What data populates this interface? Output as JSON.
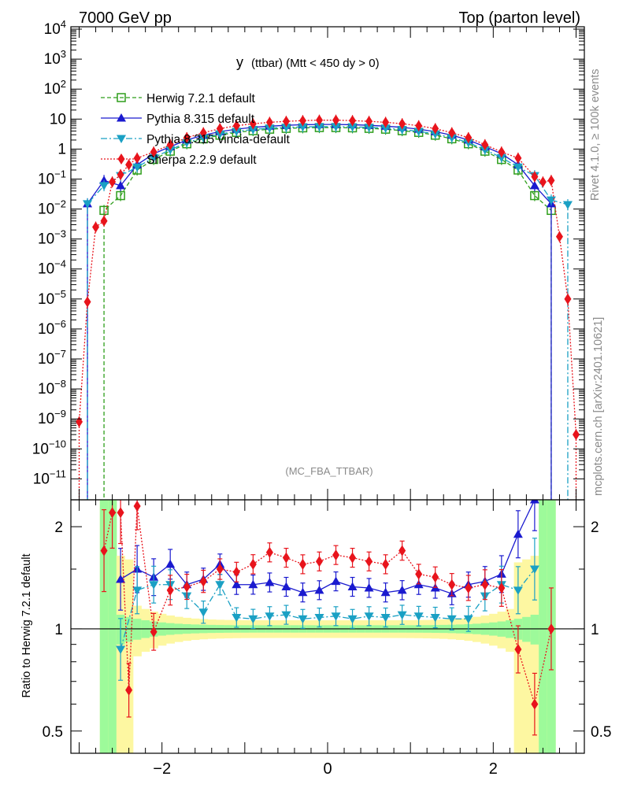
{
  "header": {
    "left_title": "7000 GeV pp",
    "right_title": "Top (parton level)"
  },
  "plot_title": {
    "main": "y",
    "detail": "(ttbar) (Mtt < 450 dy > 0)"
  },
  "watermark": "(MC_FBA_TTBAR)",
  "side_text": {
    "rivet": "Rivet 4.1.0, ≥ 100k events",
    "mcplots": "mcplots.cern.ch [arXiv:2401.10621]"
  },
  "ratio_ylabel": "Ratio to Herwig 7.2.1 default",
  "colors": {
    "herwig": "#2e9e1b",
    "pythia": "#1a1acf",
    "vincia": "#1aa0c4",
    "sherpa": "#e8141c",
    "band_yellow": "#fdf7a1",
    "band_green": "#9dfa9a"
  },
  "chart_data": [
    {
      "type": "line",
      "scale": "log",
      "xlim": [
        -3.1,
        3.1
      ],
      "ylim": [
        2e-12,
        12000
      ],
      "x_ticks": [
        -2,
        0,
        2
      ],
      "y_tick_labels": [
        "10^4",
        "10^3",
        "10^2",
        "10",
        "1",
        "10^-1",
        "10^-2",
        "10^-3",
        "10^-4",
        "10^-5",
        "10^-6",
        "10^-7",
        "10^-8",
        "10^-9",
        "10^-10",
        "10^-11"
      ],
      "y_ticks": [
        10000,
        1000,
        100,
        10,
        1,
        0.1,
        0.01,
        0.001,
        0.0001,
        1e-05,
        1e-06,
        1e-07,
        1e-08,
        1e-09,
        1e-10,
        1e-11
      ],
      "legend": [
        "Herwig 7.2.1 default",
        "Pythia 8.315 default",
        "Pythia 8.315 vincia-default",
        "Sherpa 2.2.9 default"
      ],
      "series": [
        {
          "name": "Herwig 7.2.1 default",
          "x": [
            -2.7,
            -2.5,
            -2.3,
            -2.1,
            -1.9,
            -1.7,
            -1.5,
            -1.3,
            -1.1,
            -0.9,
            -0.7,
            -0.5,
            -0.3,
            -0.1,
            0.1,
            0.3,
            0.5,
            0.7,
            0.9,
            1.1,
            1.3,
            1.5,
            1.7,
            1.9,
            2.1,
            2.3,
            2.5,
            2.7
          ],
          "values": [
            0.009,
            0.028,
            0.2,
            0.45,
            0.85,
            1.5,
            2.2,
            2.9,
            3.6,
            4.1,
            4.6,
            4.9,
            5.1,
            5.2,
            5.2,
            5.1,
            4.9,
            4.6,
            4.1,
            3.6,
            2.9,
            2.2,
            1.5,
            0.85,
            0.45,
            0.2,
            0.028,
            0.009
          ]
        },
        {
          "name": "Pythia 8.315 default",
          "x": [
            -2.9,
            -2.7,
            -2.5,
            -2.3,
            -2.1,
            -1.9,
            -1.7,
            -1.5,
            -1.3,
            -1.1,
            -0.9,
            -0.7,
            -0.5,
            -0.3,
            -0.1,
            0.1,
            0.3,
            0.5,
            0.7,
            0.9,
            1.1,
            1.3,
            1.5,
            1.7,
            1.9,
            2.1,
            2.3,
            2.5,
            2.7
          ],
          "values": [
            0.015,
            0.09,
            0.06,
            0.3,
            0.7,
            1.2,
            2.0,
            2.9,
            3.8,
            4.6,
            5.3,
            5.8,
            6.2,
            6.5,
            6.6,
            6.6,
            6.5,
            6.2,
            5.8,
            5.3,
            4.6,
            3.8,
            2.9,
            2.0,
            1.2,
            0.7,
            0.3,
            0.06,
            0.015
          ]
        },
        {
          "name": "Pythia 8.315 vincia-default",
          "x": [
            -2.9,
            -2.7,
            -2.5,
            -2.3,
            -2.1,
            -1.9,
            -1.7,
            -1.5,
            -1.3,
            -1.1,
            -0.9,
            -0.7,
            -0.5,
            -0.3,
            -0.1,
            0.1,
            0.3,
            0.5,
            0.7,
            0.9,
            1.1,
            1.3,
            1.5,
            1.7,
            1.9,
            2.1,
            2.3,
            2.5,
            2.7,
            2.9
          ],
          "values": [
            0.015,
            0.06,
            0.13,
            0.25,
            0.52,
            0.95,
            1.65,
            2.4,
            3.2,
            3.9,
            4.5,
            5.0,
            5.3,
            5.5,
            5.6,
            5.6,
            5.5,
            5.3,
            5.0,
            4.5,
            3.9,
            3.2,
            2.4,
            1.65,
            0.95,
            0.52,
            0.25,
            0.13,
            0.02,
            0.014
          ]
        },
        {
          "name": "Sherpa 2.2.9 default",
          "x": [
            -3.0,
            -2.9,
            -2.8,
            -2.7,
            -2.6,
            -2.5,
            -2.4,
            -2.3,
            -2.1,
            -1.9,
            -1.7,
            -1.5,
            -1.3,
            -1.1,
            -0.9,
            -0.7,
            -0.5,
            -0.3,
            -0.1,
            0.1,
            0.3,
            0.5,
            0.7,
            0.9,
            1.1,
            1.3,
            1.5,
            1.7,
            1.9,
            2.1,
            2.3,
            2.5,
            2.6,
            2.7,
            2.8,
            2.9,
            3.0
          ],
          "values": [
            8e-10,
            8e-06,
            0.0025,
            0.004,
            0.08,
            0.14,
            0.3,
            0.5,
            0.8,
            1.4,
            2.4,
            3.5,
            4.8,
            6.0,
            7.0,
            7.8,
            8.4,
            8.9,
            9.2,
            9.2,
            8.9,
            8.4,
            7.8,
            7.0,
            6.0,
            4.8,
            3.5,
            2.4,
            1.4,
            0.8,
            0.5,
            0.12,
            0.08,
            0.09,
            0.0012,
            1e-05,
            3e-10
          ]
        }
      ]
    },
    {
      "type": "line",
      "scale": "log",
      "ylabel": "Ratio to Herwig 7.2.1 default",
      "xlim": [
        -3.1,
        3.1
      ],
      "ylim": [
        0.43,
        2.4
      ],
      "x_ticks": [
        -2,
        0,
        2
      ],
      "x_tick_labels": [
        "−2",
        "0",
        "2"
      ],
      "y_ticks": [
        0.5,
        1,
        2
      ],
      "y_tick_labels": [
        "0.5",
        "1",
        "2"
      ],
      "series": [
        {
          "name": "Pythia 8.315 default",
          "x": [
            -2.5,
            -2.3,
            -2.1,
            -1.9,
            -1.7,
            -1.5,
            -1.3,
            -1.1,
            -0.9,
            -0.7,
            -0.5,
            -0.3,
            -0.1,
            0.1,
            0.3,
            0.5,
            0.7,
            0.9,
            1.1,
            1.3,
            1.5,
            1.7,
            1.9,
            2.1,
            2.3,
            2.5
          ],
          "values": [
            1.4,
            1.5,
            1.42,
            1.55,
            1.35,
            1.4,
            1.55,
            1.35,
            1.35,
            1.37,
            1.33,
            1.28,
            1.3,
            1.38,
            1.33,
            1.32,
            1.28,
            1.3,
            1.35,
            1.32,
            1.27,
            1.35,
            1.38,
            1.45,
            1.9,
            2.5
          ]
        },
        {
          "name": "Pythia 8.315 vincia-default",
          "x": [
            -2.5,
            -2.3,
            -2.1,
            -1.9,
            -1.7,
            -1.5,
            -1.3,
            -1.1,
            -0.9,
            -0.7,
            -0.5,
            -0.3,
            -0.1,
            0.1,
            0.3,
            0.5,
            0.7,
            0.9,
            1.1,
            1.3,
            1.5,
            1.7,
            1.9,
            2.1,
            2.3,
            2.5
          ],
          "values": [
            0.87,
            1.3,
            1.35,
            1.35,
            1.25,
            1.12,
            1.35,
            1.08,
            1.07,
            1.09,
            1.1,
            1.07,
            1.08,
            1.09,
            1.07,
            1.09,
            1.08,
            1.1,
            1.09,
            1.08,
            1.07,
            1.07,
            1.25,
            1.35,
            1.3,
            1.5
          ]
        },
        {
          "name": "Sherpa 2.2.9 default",
          "x": [
            -2.7,
            -2.6,
            -2.5,
            -2.4,
            -2.3,
            -2.1,
            -1.9,
            -1.7,
            -1.5,
            -1.3,
            -1.1,
            -0.9,
            -0.7,
            -0.5,
            -0.3,
            -0.1,
            0.1,
            0.3,
            0.5,
            0.7,
            0.9,
            1.1,
            1.3,
            1.5,
            1.7,
            1.9,
            2.1,
            2.3,
            2.5,
            2.7
          ],
          "values": [
            1.7,
            2.2,
            2.2,
            0.66,
            2.3,
            0.98,
            1.3,
            1.33,
            1.38,
            1.5,
            1.47,
            1.55,
            1.68,
            1.62,
            1.55,
            1.58,
            1.65,
            1.62,
            1.58,
            1.55,
            1.7,
            1.45,
            1.42,
            1.35,
            1.32,
            1.35,
            1.32,
            0.87,
            0.6,
            1.0
          ]
        }
      ]
    }
  ]
}
